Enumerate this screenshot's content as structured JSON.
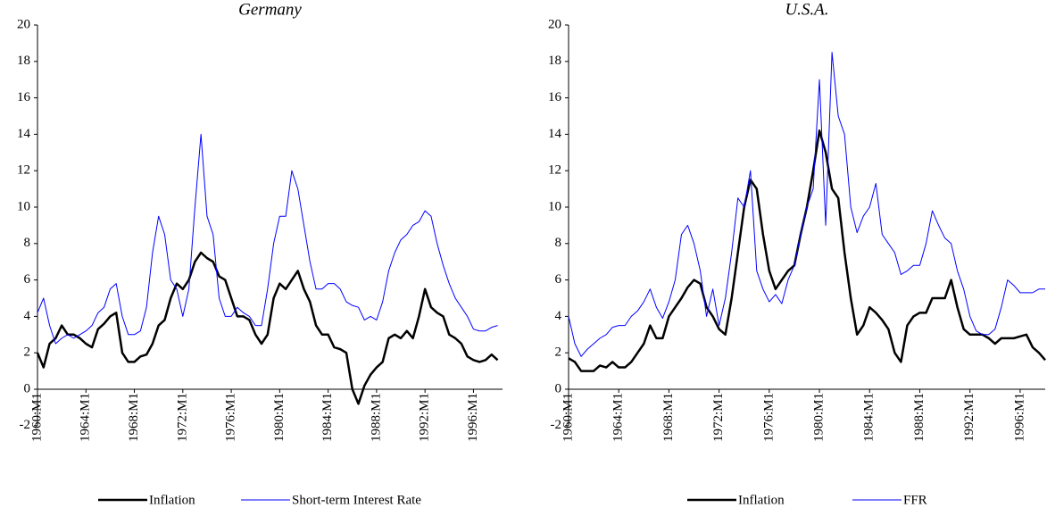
{
  "chart_data": [
    {
      "type": "line",
      "title": "Germany",
      "x": [
        1960,
        1960.5,
        1961,
        1961.5,
        1962,
        1962.5,
        1963,
        1963.5,
        1964,
        1964.5,
        1965,
        1965.5,
        1966,
        1966.5,
        1967,
        1967.5,
        1968,
        1968.5,
        1969,
        1969.5,
        1970,
        1970.5,
        1971,
        1971.5,
        1972,
        1972.5,
        1973,
        1973.5,
        1974,
        1974.5,
        1975,
        1975.5,
        1976,
        1976.5,
        1977,
        1977.5,
        1978,
        1978.5,
        1979,
        1979.5,
        1980,
        1980.5,
        1981,
        1981.5,
        1982,
        1982.5,
        1983,
        1983.5,
        1984,
        1984.5,
        1985,
        1985.5,
        1986,
        1986.5,
        1987,
        1987.5,
        1988,
        1988.5,
        1989,
        1989.5,
        1990,
        1990.5,
        1991,
        1991.5,
        1992,
        1992.5,
        1993,
        1993.5,
        1994,
        1994.5,
        1995,
        1995.5,
        1996,
        1996.5,
        1997,
        1997.5,
        1998
      ],
      "xlim": [
        1960,
        1998.4
      ],
      "ylim": [
        -2,
        20
      ],
      "xticks": [
        {
          "value": 1960,
          "label": "1960:M1"
        },
        {
          "value": 1964,
          "label": "1964:M1"
        },
        {
          "value": 1968,
          "label": "1968:M1"
        },
        {
          "value": 1972,
          "label": "1972:M1"
        },
        {
          "value": 1976,
          "label": "1976:M1"
        },
        {
          "value": 1980,
          "label": "1980:M1"
        },
        {
          "value": 1984,
          "label": "1984:M1"
        },
        {
          "value": 1988,
          "label": "1988:M1"
        },
        {
          "value": 1992,
          "label": "1992:M1"
        },
        {
          "value": 1996,
          "label": "1996:M1"
        }
      ],
      "yticks": [
        -2,
        0,
        2,
        4,
        6,
        8,
        10,
        12,
        14,
        16,
        18,
        20
      ],
      "legend": "bottom",
      "series": [
        {
          "name": "Inflation",
          "color": "#000000",
          "values": [
            2.0,
            1.2,
            2.5,
            2.8,
            3.5,
            3.0,
            3.0,
            2.8,
            2.5,
            2.3,
            3.3,
            3.6,
            4.0,
            4.2,
            2.0,
            1.5,
            1.5,
            1.8,
            1.9,
            2.5,
            3.5,
            3.8,
            5.0,
            5.8,
            5.5,
            6.0,
            7.0,
            7.5,
            7.2,
            7.0,
            6.2,
            6.0,
            5.0,
            4.0,
            4.0,
            3.8,
            3.0,
            2.5,
            3.0,
            5.0,
            5.8,
            5.5,
            6.0,
            6.5,
            5.5,
            4.8,
            3.5,
            3.0,
            3.0,
            2.3,
            2.2,
            2.0,
            0.0,
            -0.8,
            0.2,
            0.8,
            1.2,
            1.5,
            2.8,
            3.0,
            2.8,
            3.2,
            2.8,
            4.0,
            5.5,
            4.5,
            4.2,
            4.0,
            3.0,
            2.8,
            2.5,
            1.8,
            1.6,
            1.5,
            1.6,
            1.9,
            1.6
          ]
        },
        {
          "name": "Short-term Interest Rate",
          "color": "#0000ff",
          "values": [
            4.2,
            5.0,
            3.5,
            2.5,
            2.8,
            3.0,
            2.8,
            3.0,
            3.2,
            3.5,
            4.2,
            4.5,
            5.5,
            5.8,
            4.0,
            3.0,
            3.0,
            3.2,
            4.5,
            7.5,
            9.5,
            8.5,
            6.0,
            5.5,
            4.0,
            5.5,
            10.0,
            14.0,
            9.5,
            8.5,
            5.0,
            4.0,
            4.0,
            4.5,
            4.2,
            4.0,
            3.5,
            3.5,
            5.5,
            8.0,
            9.5,
            9.5,
            12.0,
            11.0,
            9.0,
            7.0,
            5.5,
            5.5,
            5.8,
            5.8,
            5.5,
            4.8,
            4.6,
            4.5,
            3.8,
            4.0,
            3.8,
            4.8,
            6.5,
            7.5,
            8.2,
            8.5,
            9.0,
            9.2,
            9.8,
            9.5,
            8.0,
            6.8,
            5.8,
            5.0,
            4.5,
            4.0,
            3.3,
            3.2,
            3.2,
            3.4,
            3.5
          ]
        }
      ]
    },
    {
      "type": "line",
      "title": "U.S.A.",
      "x": [
        1960,
        1960.5,
        1961,
        1961.5,
        1962,
        1962.5,
        1963,
        1963.5,
        1964,
        1964.5,
        1965,
        1965.5,
        1966,
        1966.5,
        1967,
        1967.5,
        1968,
        1968.5,
        1969,
        1969.5,
        1970,
        1970.5,
        1971,
        1971.5,
        1972,
        1972.5,
        1973,
        1973.5,
        1974,
        1974.5,
        1975,
        1975.5,
        1976,
        1976.5,
        1977,
        1977.5,
        1978,
        1978.5,
        1979,
        1979.5,
        1980,
        1980.5,
        1981,
        1981.5,
        1982,
        1982.5,
        1983,
        1983.5,
        1984,
        1984.5,
        1985,
        1985.5,
        1986,
        1986.5,
        1987,
        1987.5,
        1988,
        1988.5,
        1989,
        1989.5,
        1990,
        1990.5,
        1991,
        1991.5,
        1992,
        1992.5,
        1993,
        1993.5,
        1994,
        1994.5,
        1995,
        1995.5,
        1996,
        1996.5,
        1997,
        1997.5,
        1998
      ],
      "xlim": [
        1960,
        1998
      ],
      "ylim": [
        -2,
        20
      ],
      "xticks": [
        {
          "value": 1960,
          "label": "1960:M1"
        },
        {
          "value": 1964,
          "label": "1964:M1"
        },
        {
          "value": 1968,
          "label": "1968:M1"
        },
        {
          "value": 1972,
          "label": "1972:M1"
        },
        {
          "value": 1976,
          "label": "1976:M1"
        },
        {
          "value": 1980,
          "label": "1980:M1"
        },
        {
          "value": 1984,
          "label": "1984:M1"
        },
        {
          "value": 1988,
          "label": "1988:M1"
        },
        {
          "value": 1992,
          "label": "1992:M1"
        },
        {
          "value": 1996,
          "label": "1996:M1"
        }
      ],
      "yticks": [
        -2,
        0,
        2,
        4,
        6,
        8,
        10,
        12,
        14,
        16,
        18,
        20
      ],
      "legend": "bottom",
      "series": [
        {
          "name": "Inflation",
          "color": "#000000",
          "values": [
            1.7,
            1.5,
            1.0,
            1.0,
            1.0,
            1.3,
            1.2,
            1.5,
            1.2,
            1.2,
            1.5,
            2.0,
            2.5,
            3.5,
            2.8,
            2.8,
            4.0,
            4.5,
            5.0,
            5.6,
            6.0,
            5.8,
            4.5,
            4.0,
            3.3,
            3.0,
            5.0,
            7.5,
            10.0,
            11.5,
            11.0,
            8.5,
            6.5,
            5.5,
            6.0,
            6.5,
            6.8,
            8.5,
            10.0,
            12.0,
            14.2,
            13.0,
            11.0,
            10.5,
            7.5,
            5.0,
            3.0,
            3.5,
            4.5,
            4.2,
            3.8,
            3.3,
            2.0,
            1.5,
            3.5,
            4.0,
            4.2,
            4.2,
            5.0,
            5.0,
            5.0,
            6.0,
            4.5,
            3.3,
            3.0,
            3.0,
            3.0,
            2.8,
            2.5,
            2.8,
            2.8,
            2.8,
            2.9,
            3.0,
            2.3,
            2.0,
            1.6
          ]
        },
        {
          "name": "FFR",
          "color": "#0000ff",
          "values": [
            4.0,
            2.5,
            1.8,
            2.2,
            2.5,
            2.8,
            3.0,
            3.4,
            3.5,
            3.5,
            4.0,
            4.3,
            4.8,
            5.5,
            4.5,
            3.9,
            4.8,
            6.0,
            8.5,
            9.0,
            8.0,
            6.5,
            4.0,
            5.5,
            3.5,
            5.0,
            7.5,
            10.5,
            10.0,
            12.0,
            6.5,
            5.5,
            4.8,
            5.2,
            4.7,
            6.0,
            6.8,
            8.5,
            10.0,
            11.0,
            17.0,
            9.0,
            18.5,
            15.0,
            14.0,
            10.0,
            8.6,
            9.5,
            10.0,
            11.3,
            8.5,
            8.0,
            7.5,
            6.3,
            6.5,
            6.8,
            6.8,
            8.0,
            9.8,
            9.0,
            8.3,
            8.0,
            6.5,
            5.5,
            4.0,
            3.2,
            3.0,
            3.0,
            3.3,
            4.5,
            6.0,
            5.7,
            5.3,
            5.3,
            5.3,
            5.5,
            5.5
          ]
        }
      ]
    }
  ]
}
